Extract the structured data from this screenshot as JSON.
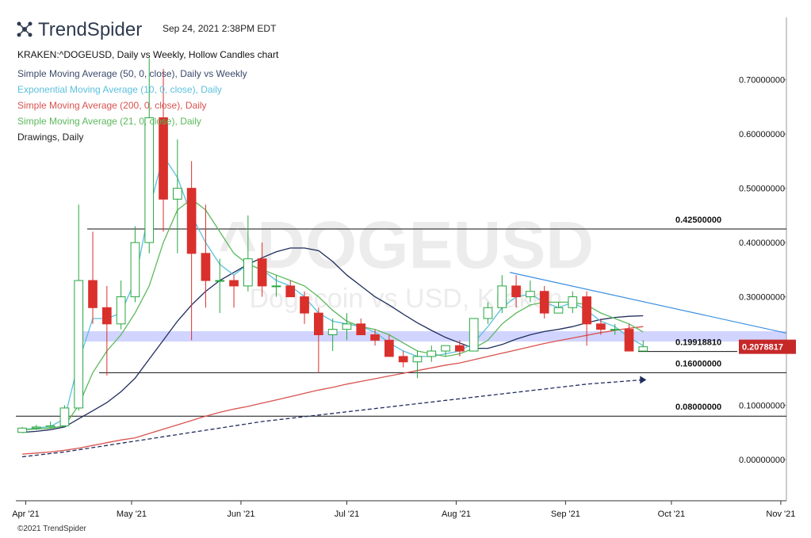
{
  "header": {
    "brand": "TrendSpider",
    "timestamp": "Sep 24, 2021 2:38PM EDT"
  },
  "footer": {
    "copyright": "©2021 TrendSpider"
  },
  "chart_data": {
    "type": "candlestick",
    "title": "KRAKEN:^DOGEUSD, Daily vs Weekly, Hollow Candles chart",
    "watermark": "^DOGEUSD",
    "watermark_subtitle": "Dogecoin vs USD, Kraken",
    "drawings_label": "Drawings, Daily",
    "up_color": "#26a641",
    "down_color": "#d9302c",
    "candles": [
      [
        0.05,
        0.06,
        0.05,
        0.058
      ],
      [
        0.058,
        0.064,
        0.055,
        0.06
      ],
      [
        0.06,
        0.07,
        0.058,
        0.062
      ],
      [
        0.062,
        0.1,
        0.06,
        0.095
      ],
      [
        0.095,
        0.47,
        0.09,
        0.33
      ],
      [
        0.33,
        0.42,
        0.25,
        0.28
      ],
      [
        0.28,
        0.32,
        0.155,
        0.25
      ],
      [
        0.25,
        0.33,
        0.24,
        0.3
      ],
      [
        0.3,
        0.43,
        0.29,
        0.4
      ],
      [
        0.4,
        0.74,
        0.38,
        0.63
      ],
      [
        0.63,
        0.72,
        0.42,
        0.48
      ],
      [
        0.48,
        0.59,
        0.38,
        0.5
      ],
      [
        0.5,
        0.55,
        0.22,
        0.38
      ],
      [
        0.38,
        0.47,
        0.28,
        0.33
      ],
      [
        0.33,
        0.37,
        0.27,
        0.33
      ],
      [
        0.33,
        0.34,
        0.28,
        0.32
      ],
      [
        0.32,
        0.45,
        0.31,
        0.37
      ],
      [
        0.37,
        0.4,
        0.3,
        0.32
      ],
      [
        0.32,
        0.34,
        0.3,
        0.32
      ],
      [
        0.32,
        0.33,
        0.3,
        0.3
      ],
      [
        0.3,
        0.31,
        0.25,
        0.27
      ],
      [
        0.27,
        0.28,
        0.16,
        0.23
      ],
      [
        0.23,
        0.26,
        0.2,
        0.24
      ],
      [
        0.24,
        0.27,
        0.22,
        0.25
      ],
      [
        0.25,
        0.26,
        0.23,
        0.23
      ],
      [
        0.23,
        0.24,
        0.21,
        0.22
      ],
      [
        0.22,
        0.23,
        0.19,
        0.19
      ],
      [
        0.19,
        0.2,
        0.17,
        0.18
      ],
      [
        0.18,
        0.2,
        0.15,
        0.19
      ],
      [
        0.19,
        0.21,
        0.18,
        0.2
      ],
      [
        0.2,
        0.21,
        0.19,
        0.21
      ],
      [
        0.21,
        0.22,
        0.19,
        0.2
      ],
      [
        0.2,
        0.26,
        0.2,
        0.26
      ],
      [
        0.26,
        0.29,
        0.25,
        0.28
      ],
      [
        0.28,
        0.34,
        0.27,
        0.32
      ],
      [
        0.32,
        0.34,
        0.28,
        0.3
      ],
      [
        0.3,
        0.33,
        0.29,
        0.31
      ],
      [
        0.31,
        0.32,
        0.26,
        0.27
      ],
      [
        0.27,
        0.29,
        0.27,
        0.28
      ],
      [
        0.28,
        0.31,
        0.27,
        0.3
      ],
      [
        0.3,
        0.31,
        0.21,
        0.25
      ],
      [
        0.25,
        0.26,
        0.23,
        0.24
      ],
      [
        0.24,
        0.25,
        0.23,
        0.24
      ],
      [
        0.24,
        0.25,
        0.2,
        0.2
      ],
      [
        0.2,
        0.22,
        0.2,
        0.2078817
      ]
    ],
    "series": [
      {
        "name": "Simple Moving Average (50, 0, close), Daily vs Weekly",
        "color": "#1f2d5c",
        "values": [
          0.05,
          0.052,
          0.055,
          0.06,
          0.075,
          0.09,
          0.105,
          0.125,
          0.15,
          0.185,
          0.22,
          0.255,
          0.285,
          0.31,
          0.33,
          0.345,
          0.36,
          0.372,
          0.383,
          0.39,
          0.39,
          0.385,
          0.365,
          0.34,
          0.32,
          0.3,
          0.285,
          0.268,
          0.252,
          0.238,
          0.225,
          0.215,
          0.205,
          0.205,
          0.212,
          0.222,
          0.23,
          0.236,
          0.24,
          0.245,
          0.252,
          0.258,
          0.262,
          0.264,
          0.265
        ],
        "weekly_values": [
          0.005,
          0.008,
          0.011,
          0.014,
          0.018,
          0.022,
          0.026,
          0.03,
          0.034,
          0.038,
          0.042,
          0.046,
          0.05,
          0.054,
          0.058,
          0.062,
          0.066,
          0.07,
          0.073,
          0.076,
          0.079,
          0.082,
          0.085,
          0.088,
          0.091,
          0.094,
          0.097,
          0.1,
          0.103,
          0.106,
          0.109,
          0.112,
          0.115,
          0.118,
          0.121,
          0.124,
          0.127,
          0.13,
          0.133,
          0.136,
          0.139,
          0.141,
          0.143,
          0.145,
          0.147
        ]
      },
      {
        "name": "Exponential Moving Average (10, 0, close), Daily",
        "color": "#5bc0de",
        "values": [
          0.055,
          0.058,
          0.061,
          0.075,
          0.18,
          0.26,
          0.26,
          0.27,
          0.33,
          0.46,
          0.56,
          0.52,
          0.45,
          0.4,
          0.36,
          0.34,
          0.36,
          0.35,
          0.33,
          0.32,
          0.3,
          0.27,
          0.255,
          0.25,
          0.245,
          0.235,
          0.215,
          0.2,
          0.19,
          0.19,
          0.195,
          0.2,
          0.215,
          0.245,
          0.28,
          0.3,
          0.305,
          0.29,
          0.28,
          0.29,
          0.275,
          0.255,
          0.245,
          0.225,
          0.21
        ]
      },
      {
        "name": "Simple Moving Average (200, 0, close), Daily",
        "color": "#d9534f",
        "values": [
          0.01,
          0.012,
          0.014,
          0.017,
          0.021,
          0.026,
          0.031,
          0.036,
          0.04,
          0.048,
          0.056,
          0.064,
          0.072,
          0.08,
          0.087,
          0.093,
          0.098,
          0.104,
          0.11,
          0.116,
          0.122,
          0.128,
          0.133,
          0.139,
          0.144,
          0.149,
          0.154,
          0.159,
          0.164,
          0.169,
          0.174,
          0.178,
          0.184,
          0.19,
          0.196,
          0.202,
          0.208,
          0.214,
          0.219,
          0.224,
          0.229,
          0.234,
          0.238,
          0.242,
          0.245
        ]
      },
      {
        "name": "Simple Moving Average (21, 0, close), Daily",
        "color": "#5cb85c",
        "values": [
          0.055,
          0.056,
          0.058,
          0.062,
          0.1,
          0.16,
          0.2,
          0.23,
          0.27,
          0.32,
          0.4,
          0.46,
          0.48,
          0.46,
          0.42,
          0.38,
          0.36,
          0.35,
          0.34,
          0.33,
          0.32,
          0.3,
          0.275,
          0.255,
          0.245,
          0.24,
          0.23,
          0.215,
          0.2,
          0.195,
          0.19,
          0.195,
          0.205,
          0.22,
          0.25,
          0.27,
          0.285,
          0.29,
          0.29,
          0.29,
          0.285,
          0.27,
          0.26,
          0.25,
          0.235
        ]
      }
    ],
    "levels": [
      {
        "value": 0.425,
        "label": "0.42500000"
      },
      {
        "value": 0.1991881,
        "label": "0.19918810"
      },
      {
        "value": 0.16,
        "label": "0.16000000"
      },
      {
        "value": 0.08,
        "label": "0.08000000"
      }
    ],
    "trendline": [
      0.345,
      0.233
    ],
    "zone": [
      0.2175,
      0.2365
    ],
    "xlim": [
      0.05,
      54.65
    ],
    "xticks": [
      {
        "value": 0.75,
        "label": "Apr '21"
      },
      {
        "value": 8.25,
        "label": "May '21"
      },
      {
        "value": 16,
        "label": "Jun '21"
      },
      {
        "value": 23.5,
        "label": "Jul '21"
      },
      {
        "value": 31.25,
        "label": "Aug '21"
      },
      {
        "value": 39,
        "label": "Sep '21"
      },
      {
        "value": 46.5,
        "label": "Oct '21"
      },
      {
        "value": 54.25,
        "label": "Nov '21"
      }
    ],
    "ylim": [
      -0.076,
      0.815
    ],
    "yticks": [
      {
        "value": 0,
        "label": "0.00000000"
      },
      {
        "value": 0.1,
        "label": "0.10000000"
      },
      {
        "value": 0.3,
        "label": "0.30000000"
      },
      {
        "value": 0.4,
        "label": "0.40000000"
      },
      {
        "value": 0.5,
        "label": "0.50000000"
      },
      {
        "value": 0.6,
        "label": "0.60000000"
      },
      {
        "value": 0.7,
        "label": "0.70000000"
      }
    ]
  }
}
